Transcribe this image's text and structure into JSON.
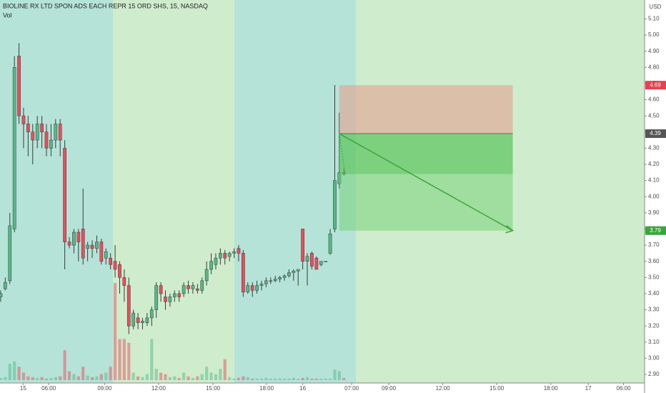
{
  "chart_data": {
    "type": "candlestick",
    "title": "BIOLINE RX LTD SPON ADS EACH REPR 15 ORD SHS, 15, NASDAQ",
    "volume_label": "Vol",
    "currency": "USD",
    "up_color": "#53b987",
    "down_color": "#eb4d5c",
    "open": [
      3.38,
      3.43,
      3.48,
      3.8,
      4.87,
      4.5,
      4.45,
      4.4,
      4.35,
      4.45,
      4.4,
      4.3,
      4.35,
      4.45,
      4.3,
      3.72,
      3.7,
      3.78,
      3.8,
      3.68,
      3.7,
      3.68,
      3.72,
      3.62,
      3.62,
      3.6,
      3.58,
      3.5,
      3.45,
      3.2,
      3.25,
      3.22,
      3.22,
      3.25,
      3.3,
      3.45,
      3.38,
      3.35,
      3.38,
      3.4,
      3.4,
      3.45,
      3.43,
      3.43,
      3.42,
      3.48,
      3.55,
      3.58,
      3.62,
      3.65,
      3.63,
      3.65,
      3.68,
      3.65,
      3.41,
      3.45,
      3.42,
      3.45,
      3.46,
      3.48,
      3.48,
      3.49,
      3.5,
      3.51,
      3.53,
      3.54,
      3.8,
      3.6,
      3.65,
      3.62,
      3.58,
      3.6,
      3.65,
      3.8,
      4.08,
      4.15
    ],
    "high": [
      3.42,
      3.5,
      3.9,
      4.87,
      4.95,
      4.55,
      4.5,
      4.45,
      4.5,
      4.5,
      4.45,
      4.45,
      4.48,
      4.48,
      4.35,
      3.75,
      3.8,
      3.8,
      4.05,
      3.72,
      3.73,
      3.76,
      3.74,
      3.68,
      3.65,
      3.7,
      3.6,
      3.55,
      3.5,
      3.3,
      3.28,
      3.25,
      3.28,
      3.32,
      3.47,
      3.47,
      3.42,
      3.4,
      3.42,
      3.42,
      3.47,
      3.48,
      3.47,
      3.46,
      3.5,
      3.6,
      3.65,
      3.65,
      3.68,
      3.67,
      3.66,
      3.68,
      3.7,
      3.67,
      3.47,
      3.47,
      3.48,
      3.48,
      3.5,
      3.5,
      3.51,
      3.51,
      3.52,
      3.55,
      3.55,
      3.55,
      3.8,
      3.65,
      3.66,
      3.63,
      3.6,
      3.6,
      3.8,
      4.69,
      4.52,
      4.18
    ],
    "low": [
      3.35,
      3.42,
      3.46,
      3.78,
      4.45,
      4.3,
      4.25,
      4.2,
      4.3,
      4.3,
      4.25,
      4.25,
      4.3,
      4.25,
      3.55,
      3.68,
      3.65,
      3.6,
      3.58,
      3.6,
      3.62,
      3.65,
      3.58,
      3.58,
      3.55,
      3.5,
      3.4,
      3.35,
      3.15,
      3.18,
      3.18,
      3.18,
      3.2,
      3.2,
      3.25,
      3.35,
      3.3,
      3.32,
      3.35,
      3.35,
      3.38,
      3.4,
      3.4,
      3.4,
      3.4,
      3.45,
      3.52,
      3.55,
      3.58,
      3.58,
      3.6,
      3.62,
      3.6,
      3.38,
      3.4,
      3.38,
      3.4,
      3.42,
      3.44,
      3.46,
      3.47,
      3.47,
      3.48,
      3.5,
      3.48,
      3.45,
      3.55,
      3.45,
      3.55,
      3.55,
      3.57,
      3.6,
      3.64,
      3.78,
      4.05,
      4.13
    ],
    "close": [
      3.4,
      3.47,
      3.82,
      4.8,
      4.5,
      4.45,
      4.4,
      4.35,
      4.45,
      4.4,
      4.3,
      4.35,
      4.45,
      4.35,
      3.72,
      3.7,
      3.78,
      3.72,
      3.62,
      3.7,
      3.68,
      3.72,
      3.6,
      3.66,
      3.58,
      3.55,
      3.5,
      3.45,
      3.2,
      3.28,
      3.22,
      3.23,
      3.25,
      3.3,
      3.45,
      3.4,
      3.35,
      3.38,
      3.4,
      3.38,
      3.45,
      3.43,
      3.45,
      3.42,
      3.48,
      3.55,
      3.6,
      3.62,
      3.65,
      3.62,
      3.65,
      3.66,
      3.65,
      3.41,
      3.45,
      3.42,
      3.45,
      3.46,
      3.48,
      3.48,
      3.49,
      3.5,
      3.51,
      3.53,
      3.54,
      3.55,
      3.6,
      3.63,
      3.57,
      3.55,
      3.6,
      3.6,
      3.77,
      4.1,
      4.15,
      4.14
    ],
    "volume": [
      3,
      4,
      22,
      25,
      18,
      10,
      5,
      4,
      3,
      4,
      2,
      3,
      4,
      5,
      40,
      12,
      8,
      5,
      18,
      6,
      4,
      5,
      8,
      10,
      18,
      130,
      55,
      55,
      50,
      10,
      5,
      4,
      8,
      55,
      15,
      10,
      8,
      4,
      5,
      3,
      10,
      5,
      3,
      5,
      8,
      18,
      10,
      8,
      15,
      28,
      4,
      2,
      3,
      5,
      4,
      2,
      2,
      2,
      3,
      2,
      2,
      2,
      2,
      2,
      3,
      2,
      3,
      4,
      2,
      2,
      2,
      2,
      2,
      14,
      12,
      3
    ],
    "xlim": [
      -0.15,
      140.7
    ],
    "xticks": [
      {
        "value": 4.9,
        "label": "15"
      },
      {
        "value": 10.5,
        "label": "06:00"
      },
      {
        "value": 22.7,
        "label": "09:00"
      },
      {
        "value": 34.5,
        "label": "12:00"
      },
      {
        "value": 46.4,
        "label": "15:00"
      },
      {
        "value": 58.1,
        "label": "18:00"
      },
      {
        "value": 66,
        "label": "16"
      },
      {
        "value": 76.7,
        "label": "07:00"
      },
      {
        "value": 84.8,
        "label": "09:00"
      },
      {
        "value": 96.6,
        "label": "12:00"
      },
      {
        "value": 108.4,
        "label": "15:00"
      },
      {
        "value": 120.2,
        "label": "18:00"
      },
      {
        "value": 128.4,
        "label": "17"
      },
      {
        "value": 136.1,
        "label": "06:00"
      }
    ],
    "ylim": [
      2.847,
      5.217
    ],
    "yticks": [
      {
        "value": 2.9,
        "label": "2.90"
      },
      {
        "value": 3.0,
        "label": "3.00"
      },
      {
        "value": 3.1,
        "label": "3.10"
      },
      {
        "value": 3.2,
        "label": "3.20"
      },
      {
        "value": 3.3,
        "label": "3.30"
      },
      {
        "value": 3.4,
        "label": "3.40"
      },
      {
        "value": 3.5,
        "label": "3.50"
      },
      {
        "value": 3.6,
        "label": "3.60"
      },
      {
        "value": 3.7,
        "label": "3.70"
      },
      {
        "value": 3.8,
        "label": "3.80"
      },
      {
        "value": 3.9,
        "label": "3.90"
      },
      {
        "value": 4.0,
        "label": "4.00"
      },
      {
        "value": 4.1,
        "label": "4.10"
      },
      {
        "value": 4.2,
        "label": "4.20"
      },
      {
        "value": 4.3,
        "label": "4.30"
      },
      {
        "value": 4.4,
        "label": "4.40"
      },
      {
        "value": 4.5,
        "label": "4.50"
      },
      {
        "value": 4.6,
        "label": "4.60"
      },
      {
        "value": 4.7,
        "label": "4.70"
      },
      {
        "value": 4.8,
        "label": "4.80"
      },
      {
        "value": 4.9,
        "label": "4.90"
      },
      {
        "value": 5.0,
        "label": "5.00"
      },
      {
        "value": 5.1,
        "label": "5.10"
      }
    ],
    "position": {
      "start": 74,
      "end": 111.9,
      "entry": 4.39,
      "stop": 4.69,
      "target": 3.79,
      "current": 4.14
    }
  }
}
